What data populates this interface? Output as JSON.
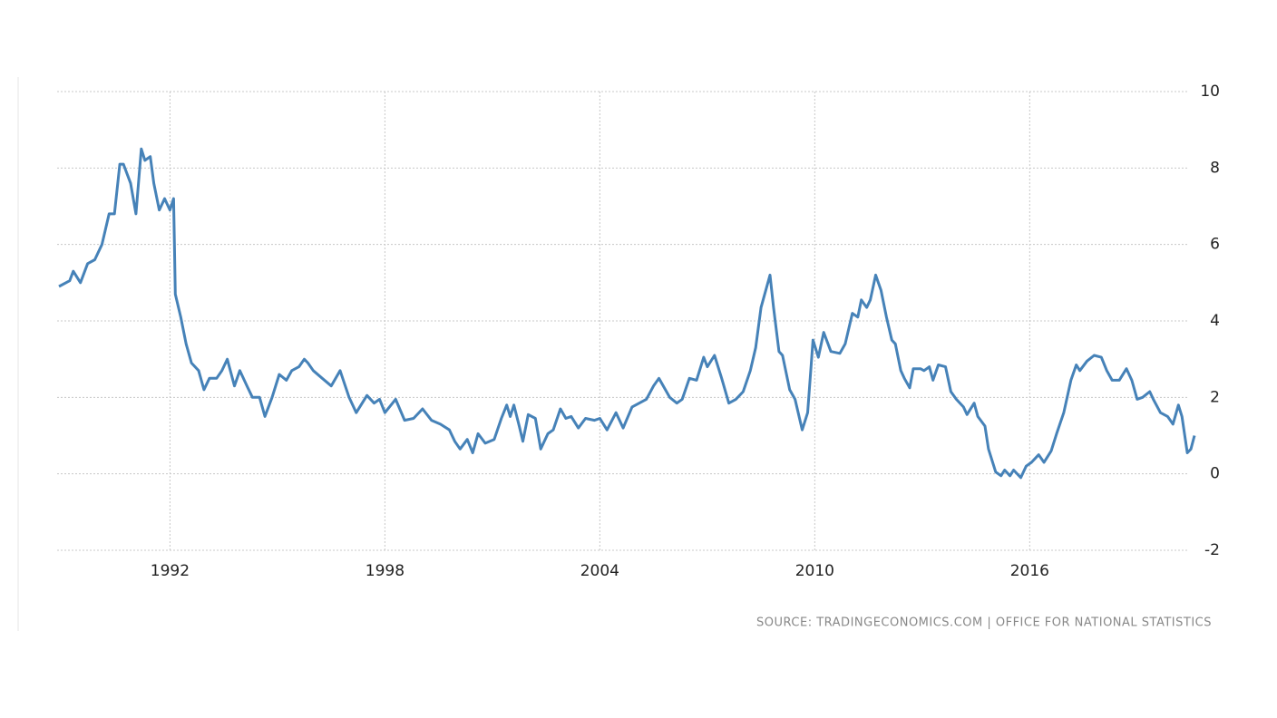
{
  "chart_data": {
    "type": "line",
    "source": "SOURCE: TRADINGECONOMICS.COM | OFFICE FOR NATIONAL STATISTICS",
    "color": "#4682b8",
    "grid": true,
    "xlim": [
      1988.85,
      2020.65
    ],
    "xticks": [
      1992,
      1998,
      2004,
      2010,
      2016
    ],
    "ylim": [
      -2,
      10
    ],
    "yticks": [
      -2,
      0,
      2,
      4,
      6,
      8,
      10
    ],
    "x": [
      1988.9,
      1989.2,
      1989.3,
      1989.5,
      1989.7,
      1989.9,
      1990.1,
      1990.3,
      1990.45,
      1990.6,
      1990.7,
      1990.9,
      1991.05,
      1991.2,
      1991.3,
      1991.45,
      1991.55,
      1991.7,
      1991.85,
      1992.0,
      1992.1,
      1992.15,
      1992.3,
      1992.45,
      1992.6,
      1992.8,
      1992.95,
      1993.1,
      1993.3,
      1993.45,
      1993.6,
      1993.8,
      1993.95,
      1994.15,
      1994.3,
      1994.5,
      1994.65,
      1994.85,
      1995.05,
      1995.25,
      1995.4,
      1995.6,
      1995.75,
      1995.85,
      1996.0,
      1996.25,
      1996.5,
      1996.75,
      1997.0,
      1997.2,
      1997.5,
      1997.7,
      1997.85,
      1998.0,
      1998.3,
      1998.55,
      1998.8,
      1999.05,
      1999.3,
      1999.55,
      1999.8,
      1999.95,
      2000.1,
      2000.3,
      2000.45,
      2000.6,
      2000.8,
      2001.05,
      2001.25,
      2001.4,
      2001.5,
      2001.6,
      2001.75,
      2001.85,
      2002.0,
      2002.2,
      2002.35,
      2002.55,
      2002.7,
      2002.9,
      2003.05,
      2003.2,
      2003.4,
      2003.6,
      2003.85,
      2004.0,
      2004.2,
      2004.45,
      2004.65,
      2004.9,
      2005.1,
      2005.3,
      2005.5,
      2005.65,
      2005.95,
      2006.15,
      2006.3,
      2006.5,
      2006.7,
      2006.9,
      2007.0,
      2007.2,
      2007.4,
      2007.6,
      2007.8,
      2008.0,
      2008.2,
      2008.35,
      2008.5,
      2008.75,
      2008.85,
      2009.0,
      2009.1,
      2009.3,
      2009.45,
      2009.65,
      2009.8,
      2009.95,
      2010.1,
      2010.25,
      2010.45,
      2010.7,
      2010.85,
      2011.05,
      2011.2,
      2011.3,
      2011.45,
      2011.55,
      2011.7,
      2011.85,
      2012.0,
      2012.15,
      2012.25,
      2012.4,
      2012.5,
      2012.65,
      2012.75,
      2012.95,
      2013.05,
      2013.2,
      2013.3,
      2013.45,
      2013.65,
      2013.8,
      2013.95,
      2014.15,
      2014.25,
      2014.45,
      2014.55,
      2014.75,
      2014.85,
      2015.05,
      2015.2,
      2015.3,
      2015.45,
      2015.55,
      2015.75,
      2015.9,
      2016.05,
      2016.25,
      2016.4,
      2016.6,
      2016.75,
      2016.95,
      2017.15,
      2017.3,
      2017.4,
      2017.6,
      2017.8,
      2018.0,
      2018.15,
      2018.3,
      2018.5,
      2018.7,
      2018.85,
      2019.0,
      2019.15,
      2019.35,
      2019.45,
      2019.65,
      2019.85,
      2020.0,
      2020.15,
      2020.25,
      2020.4,
      2020.5,
      2020.6
    ],
    "values": [
      4.9,
      5.05,
      5.3,
      5.0,
      5.5,
      5.6,
      6.0,
      6.8,
      6.8,
      8.1,
      8.1,
      7.6,
      6.8,
      8.5,
      8.2,
      8.3,
      7.6,
      6.9,
      7.2,
      6.9,
      7.2,
      4.7,
      4.1,
      3.4,
      2.9,
      2.7,
      2.2,
      2.5,
      2.5,
      2.7,
      3.0,
      2.3,
      2.7,
      2.3,
      2.0,
      2.0,
      1.5,
      2.0,
      2.6,
      2.45,
      2.7,
      2.8,
      3.0,
      2.9,
      2.7,
      2.5,
      2.3,
      2.7,
      2.0,
      1.6,
      2.05,
      1.85,
      1.95,
      1.6,
      1.95,
      1.4,
      1.45,
      1.7,
      1.4,
      1.3,
      1.15,
      0.85,
      0.65,
      0.9,
      0.55,
      1.05,
      0.8,
      0.9,
      1.45,
      1.8,
      1.5,
      1.8,
      1.25,
      0.85,
      1.55,
      1.45,
      0.65,
      1.05,
      1.15,
      1.7,
      1.45,
      1.5,
      1.2,
      1.45,
      1.4,
      1.45,
      1.15,
      1.6,
      1.2,
      1.75,
      1.85,
      1.95,
      2.3,
      2.5,
      2.0,
      1.85,
      1.95,
      2.5,
      2.45,
      3.05,
      2.8,
      3.1,
      2.5,
      1.85,
      1.95,
      2.15,
      2.7,
      3.3,
      4.35,
      5.2,
      4.35,
      3.2,
      3.1,
      2.2,
      1.95,
      1.15,
      1.6,
      3.5,
      3.05,
      3.7,
      3.2,
      3.15,
      3.4,
      4.2,
      4.1,
      4.55,
      4.35,
      4.55,
      5.2,
      4.8,
      4.1,
      3.5,
      3.4,
      2.7,
      2.5,
      2.25,
      2.75,
      2.75,
      2.7,
      2.8,
      2.45,
      2.85,
      2.8,
      2.15,
      1.95,
      1.75,
      1.55,
      1.85,
      1.5,
      1.25,
      0.65,
      0.05,
      -0.05,
      0.1,
      -0.05,
      0.1,
      -0.1,
      0.2,
      0.3,
      0.5,
      0.3,
      0.6,
      1.05,
      1.6,
      2.45,
      2.85,
      2.7,
      2.95,
      3.1,
      3.05,
      2.7,
      2.45,
      2.45,
      2.75,
      2.45,
      1.95,
      2.0,
      2.15,
      1.95,
      1.6,
      1.5,
      1.3,
      1.8,
      1.5,
      0.55,
      0.65,
      1.0
    ]
  }
}
